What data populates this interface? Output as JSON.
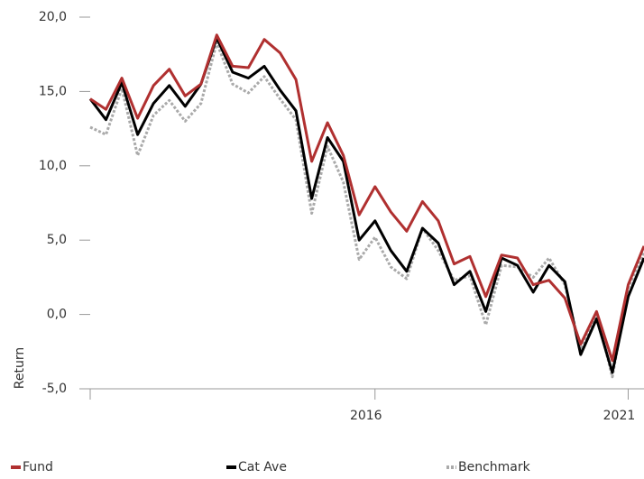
{
  "chart_data": {
    "type": "line",
    "y_label": "Return",
    "categories": [
      null,
      null,
      null,
      null,
      null,
      null,
      null,
      null,
      null,
      null,
      null,
      null,
      null,
      null,
      null,
      null,
      null,
      null,
      "2016",
      null,
      null,
      null,
      null,
      null,
      null,
      null,
      null,
      null,
      null,
      null,
      null,
      null,
      null,
      null,
      "2021",
      null
    ],
    "series": [
      {
        "name": "Fund",
        "color": "#b03030",
        "style": "solid",
        "values": [
          14.5,
          13.8,
          15.9,
          13.2,
          15.4,
          16.5,
          14.7,
          15.5,
          18.8,
          16.7,
          16.6,
          18.5,
          17.6,
          15.8,
          10.3,
          12.9,
          10.7,
          6.7,
          8.6,
          6.9,
          5.6,
          7.6,
          6.3,
          3.4,
          3.9,
          1.2,
          4.0,
          3.8,
          2.0,
          2.3,
          1.1,
          -2.0,
          0.2,
          -3.1,
          2.0,
          4.6
        ]
      },
      {
        "name": "Cat Ave",
        "color": "#000000",
        "style": "solid",
        "values": [
          14.5,
          13.1,
          15.6,
          12.1,
          14.2,
          15.4,
          14.0,
          15.5,
          18.6,
          16.3,
          15.9,
          16.7,
          15.1,
          13.7,
          7.8,
          11.9,
          10.3,
          5.0,
          6.3,
          4.3,
          2.9,
          5.8,
          4.8,
          2.0,
          2.9,
          0.2,
          3.8,
          3.3,
          1.5,
          3.3,
          2.2,
          -2.7,
          -0.3,
          -3.9,
          1.2,
          3.8
        ]
      },
      {
        "name": "Benchmark",
        "color": "#aaaaaa",
        "style": "dotted",
        "values": [
          12.6,
          12.1,
          15.2,
          10.7,
          13.4,
          14.4,
          13.0,
          14.2,
          18.3,
          15.5,
          14.9,
          16.0,
          14.5,
          13.1,
          6.8,
          11.3,
          8.9,
          3.7,
          5.2,
          3.2,
          2.4,
          5.8,
          4.3,
          2.3,
          2.6,
          -0.7,
          3.3,
          3.2,
          2.5,
          3.8,
          2.0,
          -2.4,
          0.1,
          -4.2,
          1.8,
          4.2
        ]
      }
    ],
    "ylim": [
      -5,
      20
    ],
    "yticks": [
      {
        "value": -5,
        "label": "-5,0"
      },
      {
        "value": 0,
        "label": "0,0"
      },
      {
        "value": 5,
        "label": "5,0"
      },
      {
        "value": 10,
        "label": "10,0"
      },
      {
        "value": 15,
        "label": "15,0"
      },
      {
        "value": 20,
        "label": "20,0"
      }
    ],
    "legend": "bottom"
  }
}
